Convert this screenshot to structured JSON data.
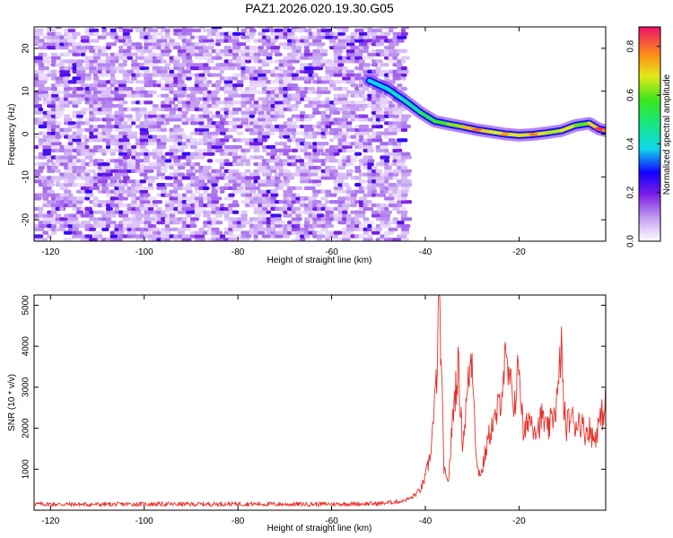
{
  "chart_data": [
    {
      "type": "heatmap",
      "title": "PAZ1.2026.020.19.30.G05",
      "xlabel": "Height of straight line (km)",
      "ylabel": "Frequency (Hz)",
      "xlim": [
        -123.5,
        -1.5
      ],
      "ylim": [
        -25,
        25
      ],
      "xticks": [
        -120,
        -100,
        -80,
        -60,
        -40,
        -20
      ],
      "yticks": [
        -20,
        -10,
        0,
        10,
        20
      ],
      "colorbar": {
        "label": "Normalized spectral amplitude",
        "range": [
          0.0,
          0.88
        ],
        "ticks": [
          0.0,
          0.2,
          0.4,
          0.6,
          0.8
        ]
      },
      "noise_region_km": [
        -123.5,
        -45
      ],
      "noise_level": [
        0.03,
        0.14
      ],
      "signal_trace": {
        "x": [
          -52,
          -48,
          -44,
          -41,
          -38,
          -35,
          -32,
          -29,
          -26,
          -23,
          -20,
          -17,
          -14,
          -11,
          -8,
          -5,
          -3,
          -1.5
        ],
        "y": [
          12.5,
          10.5,
          7.5,
          5,
          3,
          2.3,
          1.7,
          1.0,
          0.5,
          0.0,
          -0.3,
          -0.1,
          0.3,
          0.8,
          2,
          2.5,
          1.2,
          0.8
        ],
        "amplitude": [
          0.35,
          0.45,
          0.4,
          0.5,
          0.55,
          0.6,
          0.65,
          0.8,
          0.6,
          0.75,
          0.6,
          0.78,
          0.6,
          0.7,
          0.65,
          0.55,
          0.85,
          0.7
        ]
      }
    },
    {
      "type": "line",
      "xlabel": "Height of straight line (km)",
      "ylabel": "SNR (10 * v/v)",
      "xlim": [
        -123.5,
        -1.5
      ],
      "ylim": [
        0,
        5250
      ],
      "xticks": [
        -120,
        -100,
        -80,
        -60,
        -40,
        -20
      ],
      "yticks": [
        1000,
        2000,
        3000,
        4000,
        5000
      ],
      "color": "#e8312a",
      "series": [
        {
          "name": "SNR",
          "x": [
            -123.5,
            -110,
            -100,
            -90,
            -80,
            -70,
            -60,
            -50,
            -45,
            -43,
            -41,
            -40,
            -39,
            -38,
            -37.5,
            -37,
            -36.5,
            -36,
            -35.5,
            -35,
            -34,
            -33,
            -32,
            -31,
            -30.5,
            -30,
            -29.5,
            -29,
            -28,
            -27,
            -26,
            -25,
            -24,
            -23,
            -22,
            -21,
            -20.5,
            -20,
            -19.5,
            -19,
            -18,
            -17,
            -16,
            -15,
            -14,
            -13,
            -12,
            -11.5,
            -11,
            -10.5,
            -10,
            -9,
            -8,
            -7,
            -6,
            -5,
            -4,
            -3,
            -2,
            -1.5
          ],
          "y": [
            150,
            140,
            150,
            145,
            155,
            145,
            150,
            160,
            220,
            300,
            500,
            800,
            1300,
            2500,
            3500,
            5200,
            3000,
            1000,
            700,
            800,
            2500,
            3500,
            1600,
            2900,
            3500,
            3800,
            2500,
            1000,
            900,
            1500,
            2000,
            2200,
            2700,
            3600,
            3100,
            2600,
            3000,
            3700,
            2600,
            1700,
            2300,
            2100,
            2000,
            2300,
            1900,
            2200,
            2600,
            3000,
            4200,
            2600,
            2000,
            2300,
            2100,
            2200,
            1900,
            2000,
            1700,
            2100,
            2400,
            2600
          ]
        }
      ]
    }
  ]
}
